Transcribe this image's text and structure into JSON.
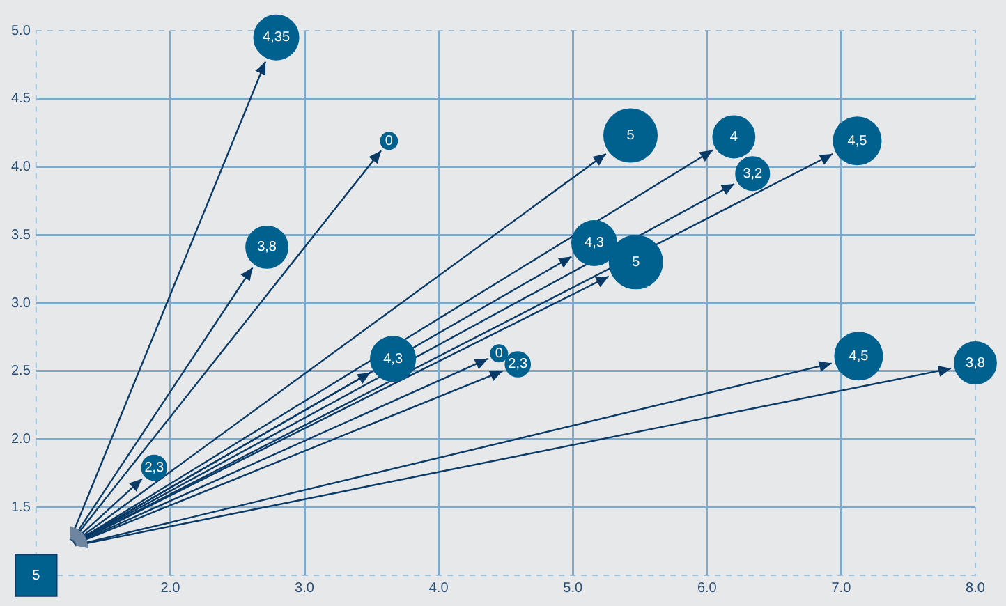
{
  "chart_data": {
    "type": "bubble",
    "xlim": [
      1,
      8
    ],
    "ylim": [
      1,
      5
    ],
    "xticks": [
      {
        "value": 2,
        "label": "2.0"
      },
      {
        "value": 3,
        "label": "3.0"
      },
      {
        "value": 4,
        "label": "4.0"
      },
      {
        "value": 5,
        "label": "5.0"
      },
      {
        "value": 6,
        "label": "6.0"
      },
      {
        "value": 7,
        "label": "7.0"
      },
      {
        "value": 8,
        "label": "8.0"
      }
    ],
    "yticks": [
      {
        "value": 1.5,
        "label": "1.5"
      },
      {
        "value": 2,
        "label": "2.0"
      },
      {
        "value": 2.5,
        "label": "2.5"
      },
      {
        "value": 3,
        "label": "3.0"
      },
      {
        "value": 3.5,
        "label": "3.5"
      },
      {
        "value": 4,
        "label": "4.0"
      },
      {
        "value": 4.5,
        "label": "4.5"
      },
      {
        "value": 5,
        "label": "5.0"
      }
    ],
    "grid": true,
    "legend": false,
    "series": [
      {
        "type": "scatter",
        "marker": "square",
        "color": "#00618f",
        "x": [
          1.0
        ],
        "values": [
          1.0
        ]
      },
      {
        "marker": "circle",
        "color": "#00618f",
        "x": [
          2.79,
          3.63,
          2.72,
          1.88,
          3.66,
          4.45,
          4.59,
          5.43,
          6.2,
          6.34,
          7.12,
          5.16,
          5.47,
          7.13,
          8.0
        ],
        "values": [
          4.95,
          4.19,
          3.41,
          1.79,
          2.59,
          2.63,
          2.55,
          4.23,
          4.22,
          3.95,
          4.19,
          3.44,
          3.3,
          2.61,
          2.56
        ],
        "sizes": [
          0.71,
          0.1,
          0.62,
          0.22,
          0.71,
          0.1,
          0.22,
          1,
          0.62,
          0.4,
          0.8,
          0.71,
          1,
          0.8,
          0.62
        ]
      }
    ],
    "annotations": [
      {
        "text": "5",
        "x": 1.0,
        "y": 1.0
      },
      {
        "text": "4,35",
        "x": 2.79,
        "y": 4.95
      },
      {
        "text": "0",
        "x": 3.63,
        "y": 4.19
      },
      {
        "text": "3,8",
        "x": 2.72,
        "y": 3.41
      },
      {
        "text": "2,3",
        "x": 1.88,
        "y": 1.79
      },
      {
        "text": "4,3",
        "x": 3.66,
        "y": 2.59
      },
      {
        "text": "0",
        "x": 4.45,
        "y": 2.63
      },
      {
        "text": "2,3",
        "x": 4.59,
        "y": 2.55
      },
      {
        "text": "5",
        "x": 5.43,
        "y": 4.23
      },
      {
        "text": "4",
        "x": 6.2,
        "y": 4.22
      },
      {
        "text": "3,2",
        "x": 6.34,
        "y": 3.95
      },
      {
        "text": "4,5",
        "x": 7.12,
        "y": 4.19
      },
      {
        "text": "4,3",
        "x": 5.16,
        "y": 3.44
      },
      {
        "text": "5",
        "x": 5.47,
        "y": 3.3
      },
      {
        "text": "4,5",
        "x": 7.13,
        "y": 2.61
      },
      {
        "text": "3,8",
        "x": 8.0,
        "y": 2.56
      }
    ]
  }
}
